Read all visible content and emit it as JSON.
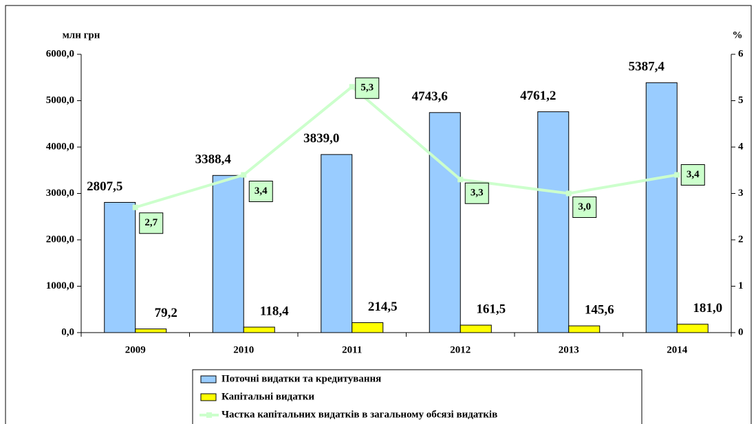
{
  "chart_data": {
    "type": "bar_line",
    "y_axis_label": "млн грн",
    "y2_axis_label": "%",
    "categories": [
      "2009",
      "2010",
      "2011",
      "2012",
      "2013",
      "2014"
    ],
    "series": [
      {
        "name": "Поточні видатки та кредитування",
        "type": "bar",
        "color": "#99ccff",
        "values": [
          2807.5,
          3388.4,
          3839.0,
          4743.6,
          4761.2,
          5387.4
        ],
        "value_labels": [
          "2807,5",
          "3388,4",
          "3839,0",
          "4743,6",
          "4761,2",
          "5387,4"
        ]
      },
      {
        "name": "Капітальні видатки",
        "type": "bar",
        "color": "#ffff00",
        "values": [
          79.2,
          118.4,
          214.5,
          161.5,
          145.6,
          181.0
        ],
        "value_labels": [
          "79,2",
          "118,4",
          "214,5",
          "161,5",
          "145,6",
          "181,0"
        ]
      },
      {
        "name": "Частка капітальних видатків в загальному обсязі видатків",
        "type": "line",
        "color": "#ccffcc",
        "axis": "y2",
        "values": [
          2.7,
          3.4,
          5.3,
          3.3,
          3.0,
          3.4
        ],
        "value_labels": [
          "2,7",
          "3,4",
          "5,3",
          "3,3",
          "3,0",
          "3,4"
        ]
      }
    ],
    "ylim": [
      0,
      6000
    ],
    "yticks": [
      {
        "value": 0,
        "label": "0,0"
      },
      {
        "value": 1000,
        "label": "1000,0"
      },
      {
        "value": 2000,
        "label": "2000,0"
      },
      {
        "value": 3000,
        "label": "3000,0"
      },
      {
        "value": 4000,
        "label": "4000,0"
      },
      {
        "value": 5000,
        "label": "5000,0"
      },
      {
        "value": 6000,
        "label": "6000,0"
      }
    ],
    "y2lim": [
      0,
      6
    ],
    "y2ticks": [
      0,
      1,
      2,
      3,
      4,
      5,
      6
    ],
    "grid": false,
    "legend": "bottom"
  }
}
